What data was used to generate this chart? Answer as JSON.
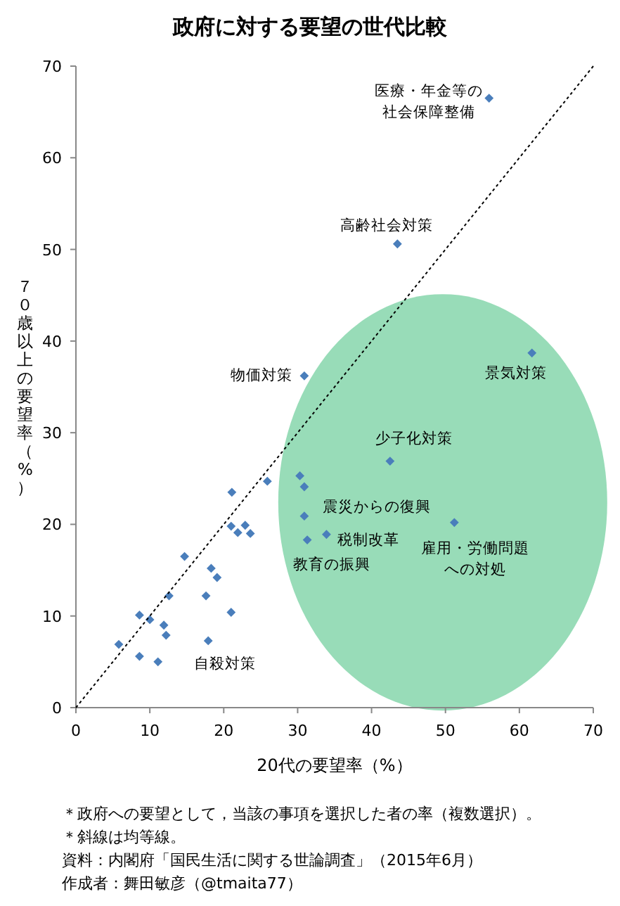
{
  "chart_data": {
    "type": "scatter",
    "title": "政府に対する要望の世代比較",
    "xlabel": "20代の要望率（%）",
    "ylabel": "７０歳以上の要望率（%）",
    "xlim": [
      0,
      70
    ],
    "ylim": [
      0,
      70
    ],
    "xticks": [
      0,
      10,
      20,
      30,
      40,
      50,
      60,
      70
    ],
    "yticks": [
      0,
      10,
      20,
      30,
      40,
      50,
      60,
      70
    ],
    "grid": false,
    "series": [
      {
        "color": "#4a7ebb",
        "marker": "diamond",
        "x": [
          55.9,
          43.5,
          61.7,
          30.9,
          42.5,
          30.3,
          30.9,
          30.9,
          31.3,
          33.9,
          51.2,
          25.9,
          21.1,
          21.0,
          21.9,
          22.9,
          23.6,
          14.7,
          18.3,
          19.1,
          12.6,
          17.6,
          8.6,
          10.0,
          21.0,
          11.9,
          12.2,
          5.8,
          8.6,
          11.1,
          17.9
        ],
        "values": [
          66.5,
          50.6,
          38.7,
          36.2,
          26.9,
          25.3,
          24.1,
          20.9,
          18.3,
          18.9,
          20.2,
          24.7,
          23.5,
          19.8,
          19.1,
          19.9,
          19.0,
          16.5,
          15.2,
          14.2,
          12.2,
          12.2,
          10.1,
          9.6,
          10.4,
          9.0,
          7.9,
          6.9,
          5.6,
          5.0,
          7.3
        ]
      },
      {
        "type": "line",
        "color": "#000000",
        "line_style": "dotted",
        "x": [
          0,
          70
        ],
        "values": [
          0,
          70
        ]
      }
    ],
    "annotations": [
      "医療・年金等の社会保障整備",
      "高齢社会対策",
      "景気対策",
      "物価対策",
      "少子化対策",
      "震災からの復興",
      "税制改革",
      "教育の振興",
      "雇用・労働問題への対処",
      "自殺対策",
      "＊政府への要望として，当該の事項を選択した者の率（複数選択）。",
      "＊斜線は均等線。",
      "資料：内閣府「国民生活に関する世論調査」（2015年6月）",
      "作成者：舞田敏彦（@tmaita77）"
    ]
  }
}
